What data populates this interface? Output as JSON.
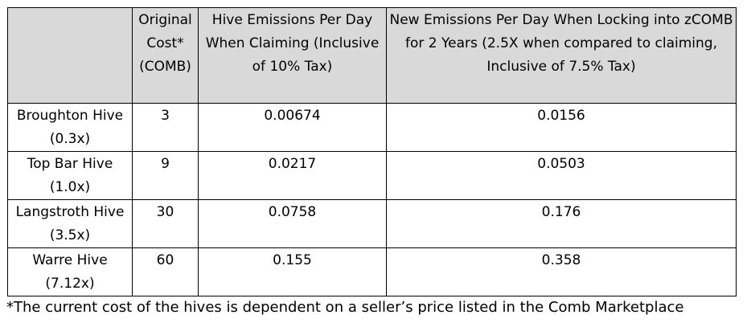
{
  "table": {
    "columns": [
      "",
      "Original Cost* (COMB)",
      "Hive Emissions Per Day When Claiming (Inclusive of 10% Tax)",
      "New Emissions Per Day When Locking into zCOMB for 2 Years (2.5X when compared to claiming, Inclusive of 7.5% Tax)"
    ],
    "rows": [
      [
        "Broughton Hive (0.3x)",
        "3",
        "0.00674",
        "0.0156"
      ],
      [
        "Top Bar Hive (1.0x)",
        "9",
        "0.0217",
        "0.0503"
      ],
      [
        "Langstroth Hive (3.5x)",
        "30",
        "0.0758",
        "0.176"
      ],
      [
        "Warre Hive (7.12x)",
        "60",
        "0.155",
        "0.358"
      ]
    ]
  },
  "footnote": "*The current cost of the hives is dependent on a seller’s price listed in the Comb Marketplace",
  "colors": {
    "header_background": "#d9d9d9",
    "border": "#000000",
    "text": "#000000"
  }
}
